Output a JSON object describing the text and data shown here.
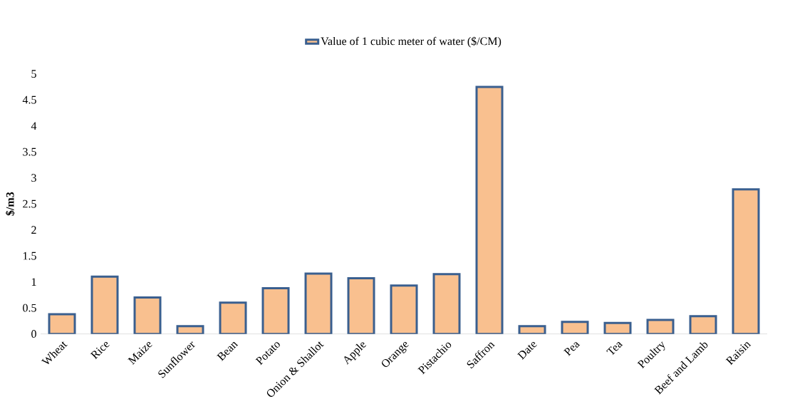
{
  "chart_data": {
    "type": "bar",
    "ylabel": "$/m3",
    "categories": [
      "Wheat",
      "Rice",
      "Maize",
      "Sunflower",
      "Bean",
      "Potato",
      "Onion & Shallot",
      "Apple",
      "Orange",
      "Pistachio",
      "Saffron",
      "Date",
      "Pea",
      "Tea",
      "Poultry",
      "Beef and Lamb",
      "Raisin"
    ],
    "series": [
      {
        "name": "Value of 1 cubic meter of water ($/CM)",
        "color": "#f9c08f",
        "values": [
          0.38,
          1.1,
          0.7,
          0.15,
          0.6,
          0.88,
          1.16,
          1.07,
          0.93,
          1.15,
          4.75,
          0.15,
          0.23,
          0.21,
          0.27,
          0.34,
          2.78
        ]
      }
    ],
    "ylim": [
      0,
      5
    ],
    "yticks": [
      0,
      0.5,
      1,
      1.5,
      2,
      2.5,
      3,
      3.5,
      4,
      4.5,
      5
    ],
    "legend": "top",
    "grid": false
  }
}
